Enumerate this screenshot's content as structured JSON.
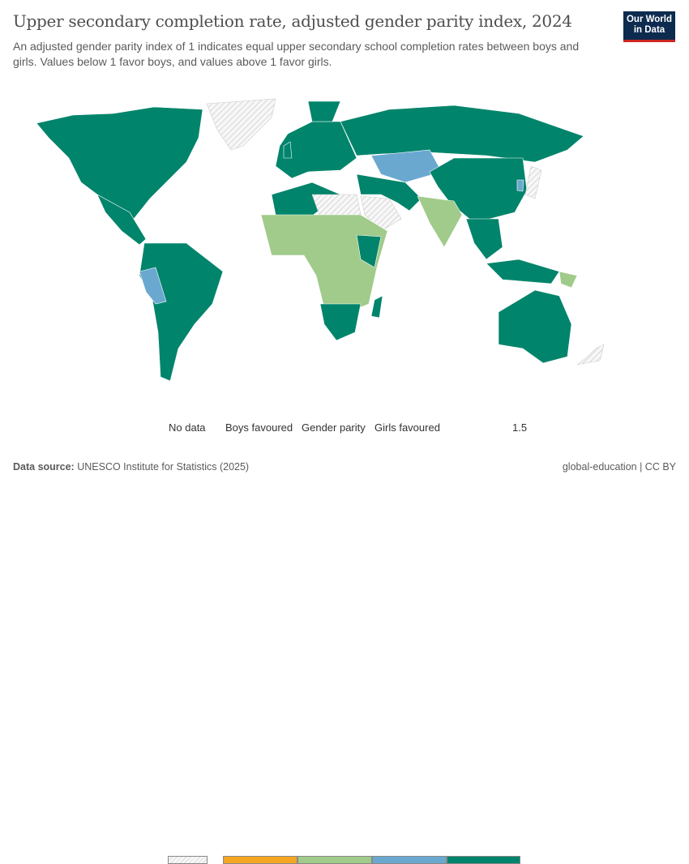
{
  "header": {
    "title": "Upper secondary completion rate, adjusted gender parity index, 2024",
    "subtitle": "An adjusted gender parity index of 1 indicates equal upper secondary school completion rates between boys and girls. Values below 1 favor boys, and values above 1 favor girls.",
    "logo": "Our World in Data"
  },
  "legend": {
    "no_data": "No data",
    "bins": [
      {
        "label": "Boys favoured",
        "color": "#f5a623"
      },
      {
        "label": "Gender parity",
        "color": "#a0cb8a"
      },
      {
        "label": "Girls favoured",
        "color": "#6aa8d0"
      },
      {
        "label": "",
        "color": "#00846b"
      }
    ],
    "max_label": "1.5"
  },
  "footer": {
    "source_label": "Data source:",
    "source": "UNESCO Institute for Statistics (2025)",
    "right": "global-education | CC BY"
  }
}
